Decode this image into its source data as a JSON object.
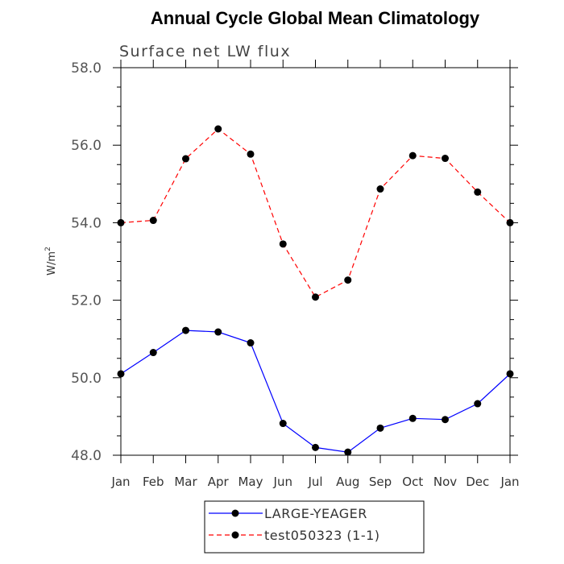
{
  "chart_data": {
    "type": "line",
    "title": "Annual Cycle Global Mean Climatology",
    "subtitle": "Surface net LW flux",
    "xlabel": "",
    "ylabel": "W/m",
    "ylabel_superscript": "2",
    "categories": [
      "Jan",
      "Feb",
      "Mar",
      "Apr",
      "May",
      "Jun",
      "Jul",
      "Aug",
      "Sep",
      "Oct",
      "Nov",
      "Dec",
      "Jan"
    ],
    "ylim": [
      48.0,
      58.0
    ],
    "yticks": [
      "48.0",
      "50.0",
      "52.0",
      "54.0",
      "56.0",
      "58.0"
    ],
    "yminor_step": 0.5,
    "grid": false,
    "legend_position": "bottom-center",
    "series": [
      {
        "name": "LARGE-YEAGER",
        "color": "#0000ff",
        "dash": "solid",
        "marker": "filled-circle",
        "values": [
          50.1,
          50.65,
          51.22,
          51.18,
          50.9,
          48.82,
          48.2,
          48.08,
          48.7,
          48.95,
          48.92,
          49.33,
          50.1
        ]
      },
      {
        "name": "test050323 (1-1)",
        "color": "#ff0000",
        "dash": "dashed",
        "marker": "filled-circle",
        "values": [
          54.0,
          54.06,
          55.65,
          56.42,
          55.77,
          53.45,
          52.08,
          52.52,
          54.87,
          55.73,
          55.66,
          54.79,
          54.0
        ]
      }
    ]
  }
}
